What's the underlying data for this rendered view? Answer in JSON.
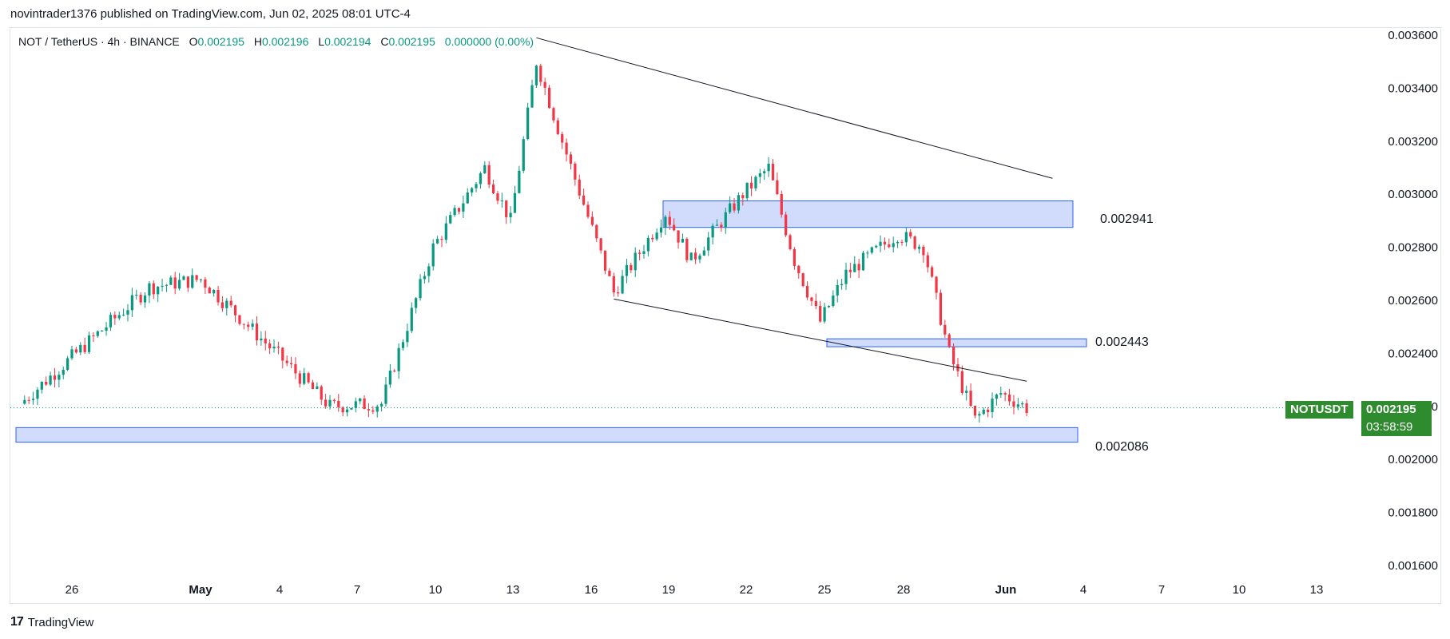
{
  "header": {
    "published_line": "novintrader1376 published on TradingView.com, Jun 02, 2025 08:01 UTC-4"
  },
  "legend": {
    "symbol": "NOT / TetherUS · 4h · BINANCE",
    "open_label": "O",
    "open": "0.002195",
    "high_label": "H",
    "high": "0.002196",
    "low_label": "L",
    "low": "0.002194",
    "close_label": "C",
    "close": "0.002195",
    "change": "0.000000 (0.00%)"
  },
  "price_tag": {
    "ticker": "NOTUSDT",
    "price": "0.002195",
    "countdown": "03:58:59"
  },
  "footer": {
    "brand": "TradingView",
    "logo": "17"
  },
  "colors": {
    "up": "#089981",
    "down": "#f23645",
    "zone_fill": "#d1dcfd",
    "zone_stroke": "#2962ff",
    "tag_bg": "#2e8b2e"
  },
  "chart_data": {
    "type": "candlestick",
    "timeframe": "4h",
    "ylim": [
      0.00152,
      0.00366
    ],
    "y_ticks": [
      "0.003600",
      "0.003400",
      "0.003200",
      "0.003000",
      "0.002800",
      "0.002600",
      "0.002400",
      "0.002200",
      "0.002000",
      "0.001800",
      "0.001600"
    ],
    "x_ticks": [
      "26",
      "May",
      "4",
      "7",
      "10",
      "13",
      "16",
      "19",
      "22",
      "25",
      "28",
      "Jun",
      "4",
      "7",
      "10",
      "13"
    ],
    "key_points": [
      {
        "date": "Apr 24",
        "price": 0.00221
      },
      {
        "date": "Apr 29",
        "price": 0.00265
      },
      {
        "date": "May 1",
        "price": 0.00268
      },
      {
        "date": "May 6",
        "price": 0.0022
      },
      {
        "date": "May 8",
        "price": 0.00221
      },
      {
        "date": "May 10",
        "price": 0.0028
      },
      {
        "date": "May 12",
        "price": 0.0031
      },
      {
        "date": "May 13",
        "price": 0.0029
      },
      {
        "date": "May 14",
        "price": 0.0035
      },
      {
        "date": "May 15",
        "price": 0.0032
      },
      {
        "date": "May 17",
        "price": 0.00263
      },
      {
        "date": "May 19",
        "price": 0.00293
      },
      {
        "date": "May 20",
        "price": 0.00275
      },
      {
        "date": "May 22",
        "price": 0.003
      },
      {
        "date": "May 23",
        "price": 0.0031
      },
      {
        "date": "May 24",
        "price": 0.00275
      },
      {
        "date": "May 25",
        "price": 0.00252
      },
      {
        "date": "May 26",
        "price": 0.0027
      },
      {
        "date": "May 28",
        "price": 0.00285
      },
      {
        "date": "May 29",
        "price": 0.0028
      },
      {
        "date": "May 30",
        "price": 0.0024
      },
      {
        "date": "May 31",
        "price": 0.00215
      },
      {
        "date": "Jun 1",
        "price": 0.00225
      },
      {
        "date": "Jun 2",
        "price": 0.002195
      }
    ],
    "zones": [
      {
        "label": "0.002941",
        "low": 0.002875,
        "high": 0.002975
      },
      {
        "label": "0.002443",
        "low": 0.002425,
        "high": 0.002455
      },
      {
        "label": "0.002086",
        "low": 0.002065,
        "high": 0.00212
      }
    ],
    "trendlines": [
      {
        "name": "upper",
        "from": {
          "date": "May 14",
          "price": 0.00359
        },
        "to": {
          "date": "Jun 3",
          "price": 0.00306
        }
      },
      {
        "name": "lower",
        "from": {
          "date": "May 17",
          "price": 0.002605
        },
        "to": {
          "date": "Jun 2",
          "price": 0.002295
        }
      }
    ],
    "last_price": 0.002195
  }
}
